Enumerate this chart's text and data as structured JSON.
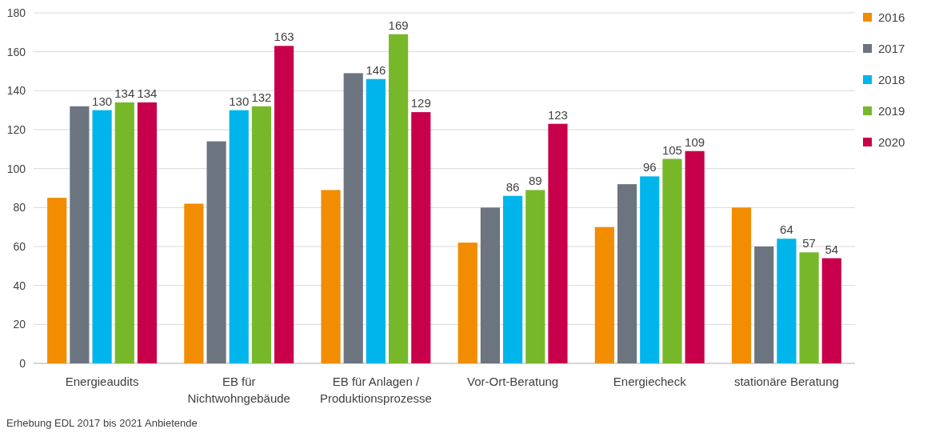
{
  "chart_data": {
    "type": "bar",
    "categories": [
      "Energieaudits",
      "EB für Nichtwohngebäude",
      "EB für Anlagen / Produktionsprozesse",
      "Vor-Ort-Beratung",
      "Energiecheck",
      "stationäre Beratung"
    ],
    "series": [
      {
        "name": "2016",
        "color": "#f28c00",
        "values": [
          85,
          82,
          89,
          62,
          70,
          80
        ]
      },
      {
        "name": "2017",
        "color": "#6c7480",
        "values": [
          132,
          114,
          149,
          80,
          92,
          60
        ]
      },
      {
        "name": "2018",
        "color": "#00b5eb",
        "values": [
          130,
          130,
          146,
          86,
          96,
          64
        ],
        "value_labels": [
          "130",
          "130",
          "146",
          "86",
          "96",
          "64"
        ]
      },
      {
        "name": "2019",
        "color": "#77b82a",
        "values": [
          134,
          132,
          169,
          89,
          105,
          57
        ],
        "value_labels": [
          "134",
          "132",
          "169",
          "89",
          "105",
          "57"
        ]
      },
      {
        "name": "2020",
        "color": "#c8004b",
        "values": [
          134,
          163,
          129,
          123,
          109,
          54
        ],
        "value_labels": [
          "134",
          "163",
          "129",
          "123",
          "109",
          "54"
        ]
      }
    ],
    "ylim": [
      0,
      180
    ],
    "yticks": [
      0,
      20,
      40,
      60,
      80,
      100,
      120,
      140,
      160,
      180
    ],
    "grid": "y",
    "legend": "top right",
    "annotations": [
      "Erhebung EDL 2017 bis 2021 Anbietende"
    ]
  }
}
